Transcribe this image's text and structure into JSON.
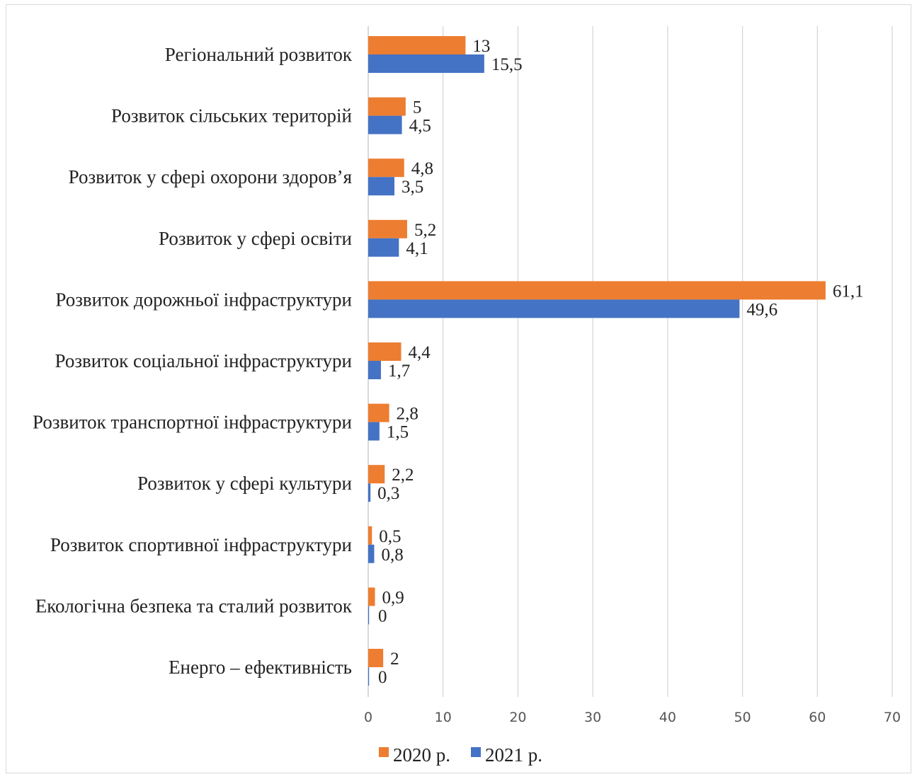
{
  "chart_data": {
    "type": "bar",
    "orientation": "horizontal",
    "categories": [
      "Регіональний розвиток",
      "Розвиток сільських територій",
      "Розвиток у сфері охорони здоров’я",
      "Розвиток у сфері освіти",
      "Розвиток дорожньої інфраструктури",
      "Розвиток соціальної інфраструктури",
      "Розвиток транспортної інфраструктури",
      "Розвиток у сфері культури",
      "Розвиток спортивної інфраструктури",
      "Екологічна безпека та сталий розвиток",
      "Енерго – ефективність"
    ],
    "series": [
      {
        "name": "2020 р.",
        "color": "#ed7d31",
        "values": [
          13,
          5,
          4.8,
          5.2,
          61.1,
          4.4,
          2.8,
          2.2,
          0.5,
          0.9,
          2
        ],
        "labels": [
          "13",
          "5",
          "4,8",
          "5,2",
          "61,1",
          "4,4",
          "2,8",
          "2,2",
          "0,5",
          "0,9",
          "2"
        ]
      },
      {
        "name": "2021 р.",
        "color": "#4472c4",
        "values": [
          15.5,
          4.5,
          3.5,
          4.1,
          49.6,
          1.7,
          1.5,
          0.3,
          0.8,
          0,
          0
        ],
        "labels": [
          "15,5",
          "4,5",
          "3,5",
          "4,1",
          "49,6",
          "1,7",
          "1,5",
          "0,3",
          "0,8",
          "0",
          "0"
        ]
      }
    ],
    "xlim": [
      0,
      70
    ],
    "xticks": [
      0,
      10,
      20,
      30,
      40,
      50,
      60,
      70
    ],
    "title": "",
    "xlabel": "",
    "ylabel": "",
    "grid": "vertical",
    "legend_position": "bottom"
  }
}
